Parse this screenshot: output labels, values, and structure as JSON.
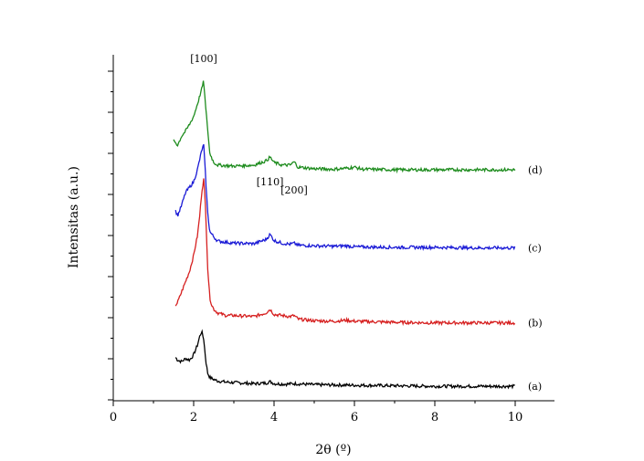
{
  "chart_data": {
    "type": "line",
    "xlabel": "2θ (º)",
    "ylabel": "Intensitas (a.u.)",
    "xlim": [
      0,
      10
    ],
    "x_ticks": [
      "0",
      "2",
      "4",
      "6",
      "8",
      "10"
    ],
    "y_tick_labels_shown": false,
    "grid": false,
    "annotations": [
      {
        "text": "[100]",
        "x": 2.25
      },
      {
        "text": "[110]",
        "x": 3.9
      },
      {
        "text": "[200]",
        "x": 4.5
      }
    ],
    "series": [
      {
        "name": "(a)",
        "color": "#000000",
        "x": [
          1.55,
          1.6,
          1.7,
          1.8,
          1.9,
          2.0,
          2.1,
          2.15,
          2.2,
          2.25,
          2.3,
          2.35,
          2.4,
          2.5,
          2.6,
          2.8,
          3.0,
          3.5,
          3.8,
          3.9,
          4.0,
          4.3,
          4.5,
          5.0,
          6.0,
          7.0,
          8.0,
          9.0,
          10.0
        ],
        "y": [
          0.6,
          0.55,
          0.52,
          0.58,
          0.55,
          0.65,
          0.85,
          1.0,
          1.1,
          0.95,
          0.55,
          0.3,
          0.22,
          0.18,
          0.15,
          0.13,
          0.12,
          0.1,
          0.11,
          0.14,
          0.1,
          0.09,
          0.1,
          0.08,
          0.07,
          0.06,
          0.05,
          0.05,
          0.05
        ]
      },
      {
        "name": "(b)",
        "color": "#d62020",
        "x": [
          1.55,
          1.6,
          1.7,
          1.8,
          1.9,
          2.0,
          2.1,
          2.15,
          2.2,
          2.25,
          2.3,
          2.35,
          2.4,
          2.45,
          2.5,
          2.6,
          2.8,
          3.0,
          3.5,
          3.8,
          3.9,
          4.0,
          4.2,
          4.4,
          4.5,
          4.6,
          5.0,
          5.5,
          5.8,
          6.0,
          7.0,
          8.0,
          9.0,
          10.0
        ],
        "y": [
          1.6,
          1.65,
          1.85,
          2.05,
          2.25,
          2.55,
          2.95,
          3.3,
          3.75,
          4.0,
          3.4,
          2.3,
          1.75,
          1.6,
          1.52,
          1.45,
          1.4,
          1.4,
          1.38,
          1.45,
          1.52,
          1.42,
          1.4,
          1.38,
          1.4,
          1.33,
          1.3,
          1.29,
          1.31,
          1.29,
          1.27,
          1.26,
          1.26,
          1.26
        ]
      },
      {
        "name": "(c)",
        "color": "#1a1ad6",
        "x": [
          1.55,
          1.6,
          1.7,
          1.8,
          1.9,
          2.0,
          2.1,
          2.2,
          2.25,
          2.3,
          2.35,
          2.4,
          2.5,
          2.6,
          2.8,
          3.0,
          3.5,
          3.8,
          3.9,
          4.0,
          4.2,
          4.4,
          4.5,
          4.6,
          5.0,
          5.5,
          5.8,
          6.0,
          7.0,
          8.0,
          9.0,
          10.0
        ],
        "y": [
          3.4,
          3.3,
          3.5,
          3.75,
          3.85,
          3.95,
          4.2,
          4.55,
          4.65,
          4.0,
          3.35,
          3.0,
          2.9,
          2.82,
          2.8,
          2.78,
          2.77,
          2.85,
          2.95,
          2.83,
          2.78,
          2.76,
          2.78,
          2.74,
          2.73,
          2.72,
          2.73,
          2.71,
          2.7,
          2.7,
          2.69,
          2.69
        ]
      },
      {
        "name": "(d)",
        "color": "#1e8c1e",
        "x": [
          1.5,
          1.6,
          1.7,
          1.8,
          1.9,
          2.0,
          2.1,
          2.2,
          2.25,
          2.3,
          2.35,
          2.4,
          2.5,
          2.6,
          2.8,
          3.0,
          3.5,
          3.8,
          3.9,
          4.0,
          4.2,
          4.4,
          4.5,
          4.6,
          5.0,
          5.5,
          5.8,
          6.0,
          6.2,
          7.0,
          8.0,
          9.0,
          10.0
        ],
        "y": [
          4.75,
          4.65,
          4.82,
          4.92,
          5.05,
          5.2,
          5.45,
          5.72,
          5.88,
          5.35,
          4.95,
          4.5,
          4.32,
          4.27,
          4.26,
          4.25,
          4.27,
          4.35,
          4.42,
          4.32,
          4.27,
          4.27,
          4.33,
          4.23,
          4.2,
          4.19,
          4.21,
          4.23,
          4.19,
          4.18,
          4.18,
          4.18,
          4.18
        ]
      }
    ]
  }
}
